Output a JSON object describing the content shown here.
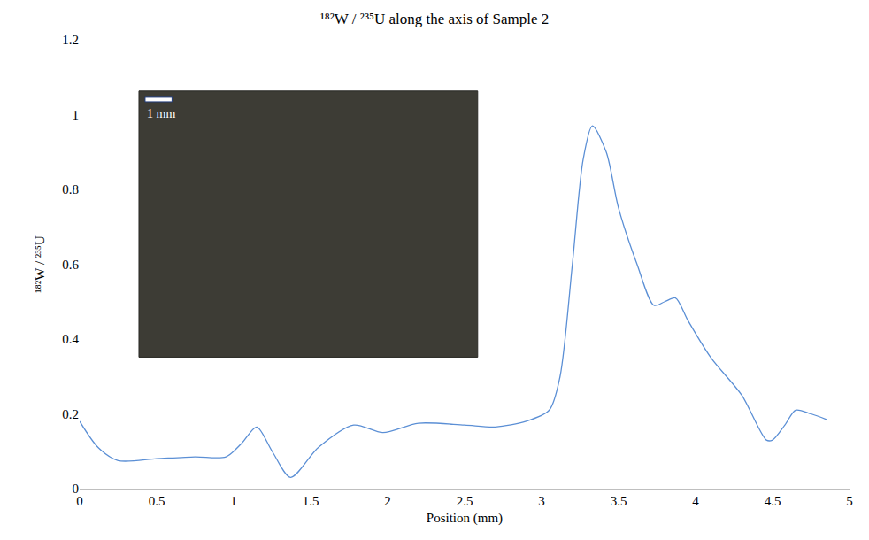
{
  "chart_data": {
    "type": "line",
    "title": "¹⁸²W / ²³⁵U along the axis of Sample 2",
    "x_label": "Position (mm)",
    "y_label": "¹⁸²W / ²³⁵U",
    "x": [
      0,
      0.12,
      0.25,
      0.5,
      0.75,
      0.95,
      1.05,
      1.15,
      1.25,
      1.37,
      1.55,
      1.78,
      1.97,
      2.2,
      2.5,
      2.7,
      2.9,
      3.05,
      3.12,
      3.2,
      3.27,
      3.33,
      3.42,
      3.5,
      3.62,
      3.73,
      3.8,
      3.87,
      3.95,
      4.1,
      4.3,
      4.46,
      4.5,
      4.58,
      4.65,
      4.75,
      4.85
    ],
    "values": [
      0.18,
      0.11,
      0.075,
      0.08,
      0.085,
      0.085,
      0.12,
      0.165,
      0.1,
      0.03,
      0.11,
      0.17,
      0.15,
      0.175,
      0.17,
      0.165,
      0.18,
      0.21,
      0.3,
      0.6,
      0.88,
      0.97,
      0.9,
      0.75,
      0.6,
      0.49,
      0.5,
      0.51,
      0.45,
      0.35,
      0.25,
      0.13,
      0.13,
      0.17,
      0.21,
      0.2,
      0.185
    ],
    "color": "#5b8fd5",
    "xlim": [
      0,
      5
    ],
    "xticks": [
      0,
      0.5,
      1,
      1.5,
      2,
      2.5,
      3,
      3.5,
      4,
      4.5,
      5
    ],
    "ylim": [
      0,
      1.2
    ],
    "yticks": [
      0,
      0.2,
      0.4,
      0.6,
      0.8,
      1,
      1.2
    ],
    "grid": false,
    "annotations": [
      "1 mm"
    ]
  }
}
